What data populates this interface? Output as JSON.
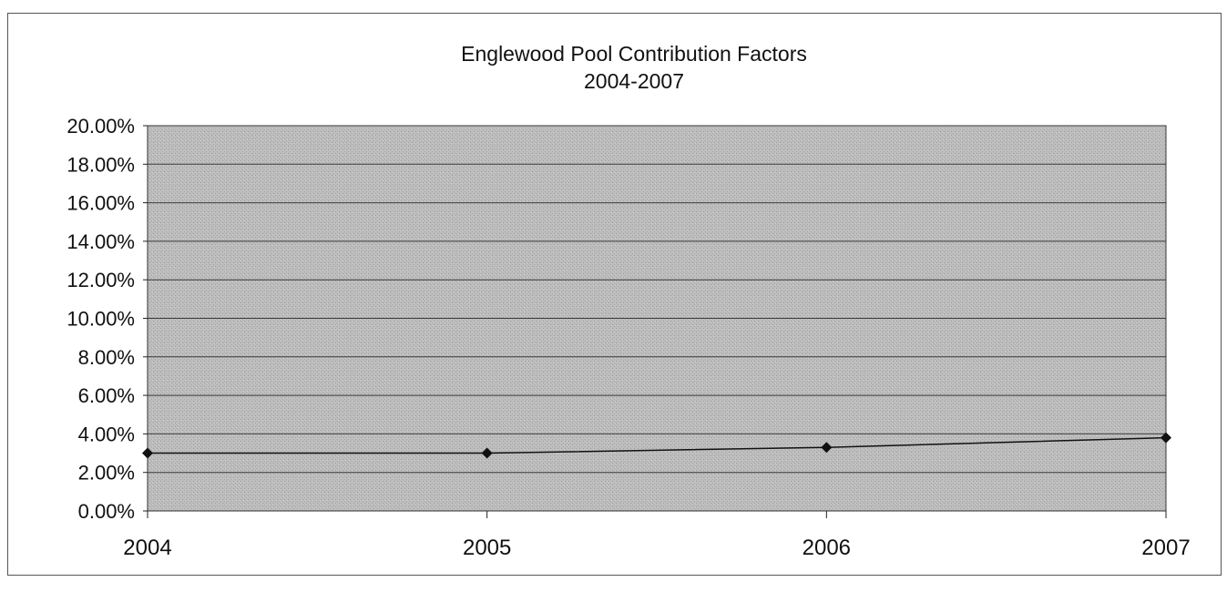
{
  "chart_data": {
    "type": "line",
    "title": "Englewood Pool Contribution Factors",
    "subtitle": "2004-2007",
    "xlabel": "",
    "ylabel": "",
    "categories": [
      "2004",
      "2005",
      "2006",
      "2007"
    ],
    "series": [
      {
        "values": [
          0.03,
          0.03,
          0.033,
          0.038
        ],
        "marker": "diamond",
        "color": "#111111"
      }
    ],
    "ylim": [
      0,
      0.2
    ],
    "ytick_values": [
      0,
      0.02,
      0.04,
      0.06,
      0.08,
      0.1,
      0.12,
      0.14,
      0.16,
      0.18,
      0.2
    ],
    "ytick_labels": [
      "0.00%",
      "2.00%",
      "4.00%",
      "6.00%",
      "8.00%",
      "10.00%",
      "12.00%",
      "14.00%",
      "16.00%",
      "18.00%",
      "20.00%"
    ],
    "grid": true,
    "legend": "none",
    "plot_background": "#b9b9b9",
    "gridline_color": "#3a3a3a"
  }
}
